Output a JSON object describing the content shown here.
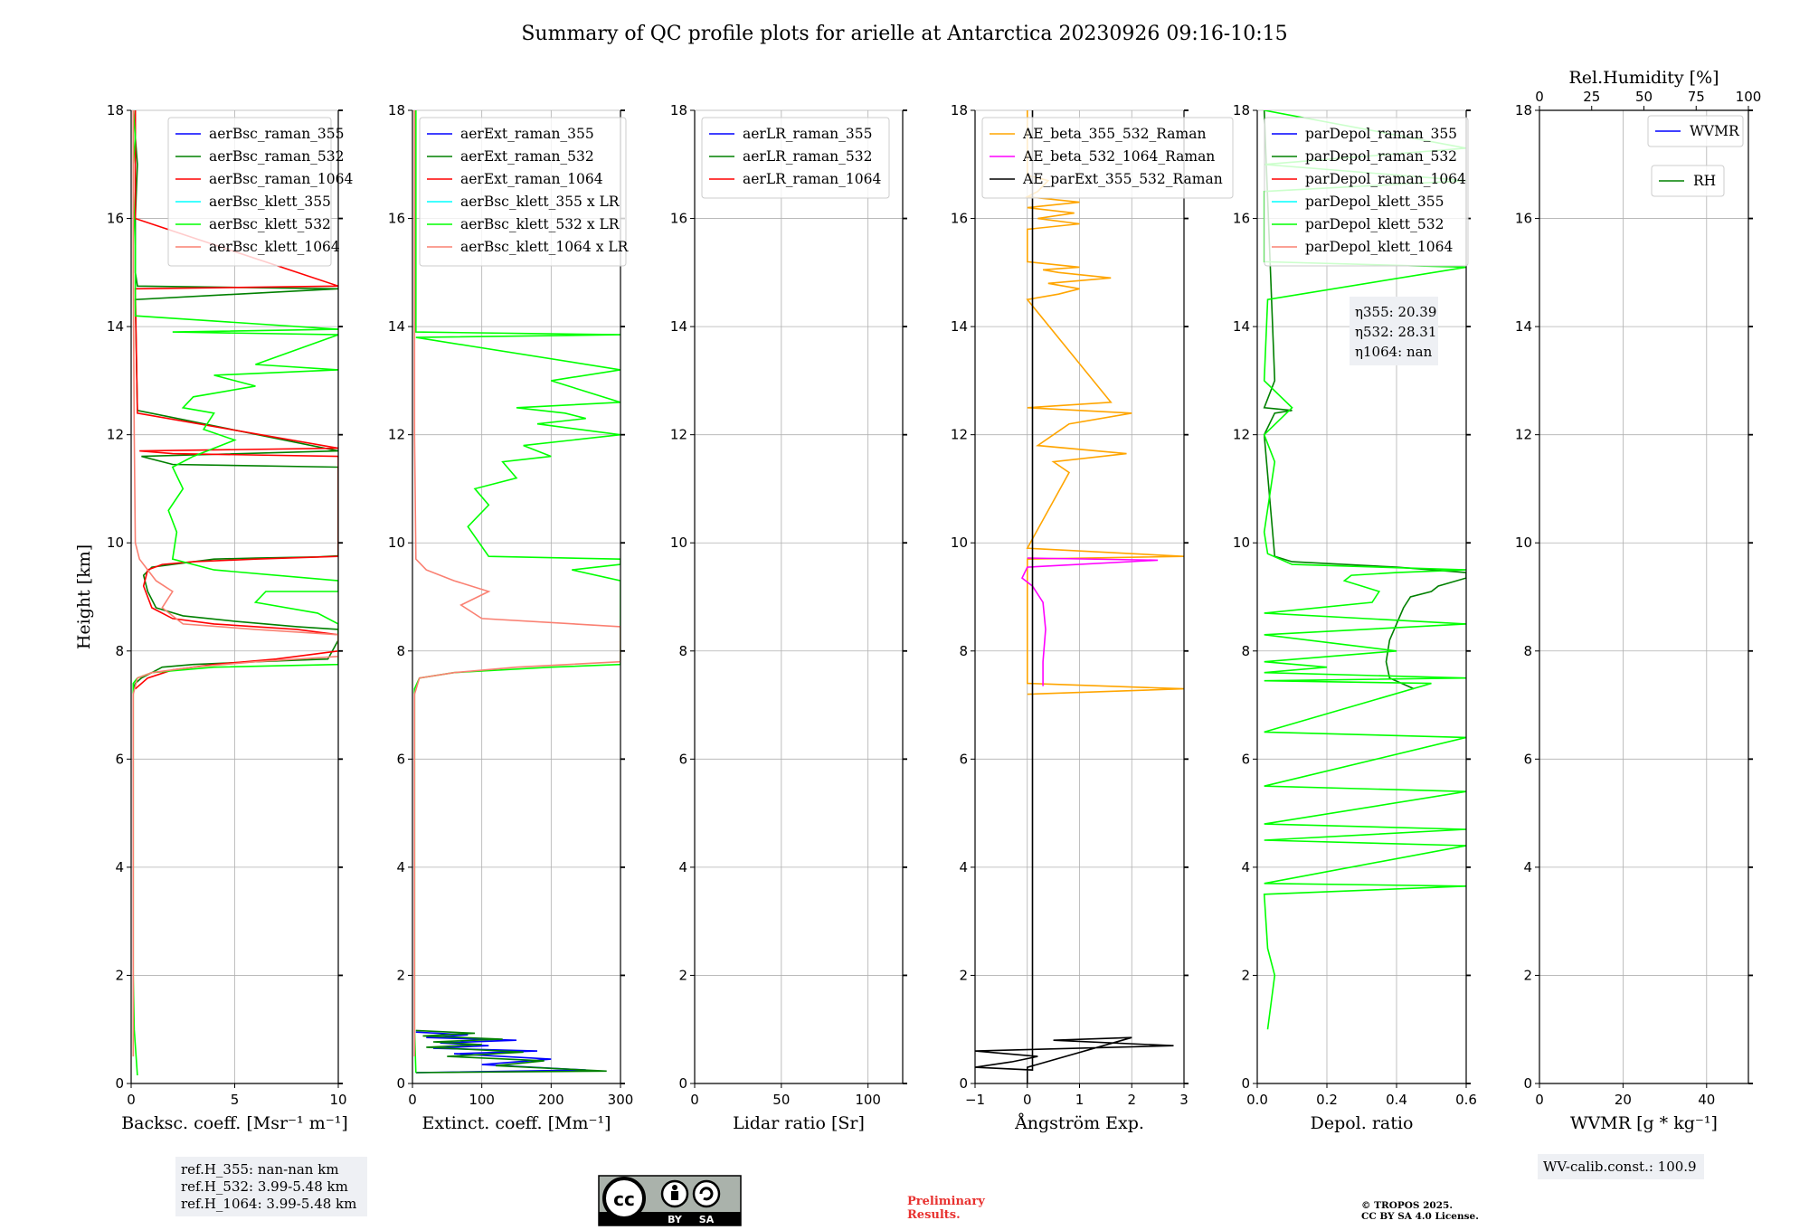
{
  "title": "Summary of QC profile plots for arielle at Antarctica 20230926 09:16-10:15",
  "colors": {
    "blue": "#0000ff",
    "darkgreen": "#008000",
    "red": "#ff0000",
    "cyan": "#00ffff",
    "lime": "#00ff00",
    "salmon": "#fa8072",
    "orange": "#ffa500",
    "magenta": "#ff00ff",
    "black": "#000000",
    "olive": "#8f8f3c"
  },
  "reference_box": {
    "line1": "ref.H_355: nan-nan km",
    "line2": "ref.H_532: 3.99-5.48 km",
    "line3": "ref.H_1064: 3.99-5.48 km"
  },
  "eta_box": {
    "line1": "η355: 20.39",
    "line2": "η532: 28.31",
    "line3": "η1064: nan"
  },
  "wv_box": {
    "text": "WV-calib.const.: 100.9"
  },
  "license_badge": {
    "cc": "cc",
    "by": "BY",
    "sa": "SA"
  },
  "preliminary": {
    "line1": "Preliminary",
    "line2": "Results."
  },
  "copyright": {
    "line1": "© TROPOS 2025.",
    "line2": "CC BY SA 4.0 License."
  },
  "chart_data": [
    {
      "type": "line",
      "xlabel": "Backsc. coeff. [Msr⁻¹ m⁻¹]",
      "ylabel": "Height [km]",
      "xlim": [
        0,
        10
      ],
      "ylim": [
        0,
        18
      ],
      "xticks": [
        "0",
        "5",
        "10"
      ],
      "yticks": [
        "0",
        "2",
        "4",
        "6",
        "8",
        "10",
        "12",
        "14",
        "16",
        "18"
      ],
      "grid": true,
      "legend_position": "top-right",
      "series": [
        {
          "name": "aerBsc_raman_355",
          "color": "#0000ff",
          "x": [],
          "y": []
        },
        {
          "name": "aerBsc_raman_532",
          "color": "#008000",
          "x": [
            0.1,
            0.2,
            0.5,
            1.0,
            1.5,
            3.0,
            6.0,
            9.5,
            10,
            10,
            8.0,
            5.0,
            2.5,
            1.2,
            0.8,
            0.6,
            1.0,
            2.0,
            4.0,
            6.0,
            9.0,
            10,
            10,
            2.0,
            0.5,
            10,
            0.3,
            0.2,
            10,
            0.3,
            0.2,
            0.2,
            0.3,
            0.2,
            0.2
          ],
          "y": [
            7.3,
            7.4,
            7.5,
            7.6,
            7.7,
            7.75,
            7.8,
            7.85,
            8.2,
            8.4,
            8.45,
            8.55,
            8.65,
            8.8,
            9.1,
            9.4,
            9.55,
            9.6,
            9.7,
            9.72,
            9.74,
            9.76,
            11.4,
            11.45,
            11.6,
            11.7,
            12.45,
            14.5,
            14.7,
            14.75,
            15.0,
            16.0,
            17.0,
            17.5,
            18.0
          ]
        },
        {
          "name": "aerBsc_raman_1064",
          "color": "#ff0000",
          "x": [
            0.2,
            0.8,
            2.0,
            4.0,
            7.0,
            10,
            10,
            8.0,
            4.0,
            2.0,
            1.0,
            0.6,
            0.8,
            1.5,
            3.0,
            6.0,
            10,
            10,
            2.0,
            0.4,
            10,
            0.3,
            0.2,
            10,
            0.2,
            0.2
          ],
          "y": [
            7.3,
            7.5,
            7.65,
            7.75,
            7.85,
            8.0,
            8.3,
            8.4,
            8.5,
            8.6,
            8.8,
            9.2,
            9.5,
            9.6,
            9.65,
            9.7,
            9.75,
            11.6,
            11.65,
            11.7,
            11.75,
            12.4,
            14.7,
            14.75,
            16.0,
            18.0
          ]
        },
        {
          "name": "aerBsc_klett_355",
          "color": "#00ffff",
          "x": [],
          "y": []
        },
        {
          "name": "aerBsc_klett_532",
          "color": "#00ff00",
          "x": [
            0.3,
            0.15,
            0.1,
            0.1,
            0.1,
            0.1,
            0.1,
            0.3,
            1.0,
            4.0,
            10,
            10,
            9.0,
            6.0,
            6.5,
            10,
            10,
            4.0,
            2.0,
            2.2,
            1.8,
            2.5,
            2.0,
            3.0,
            5.0,
            3.5,
            4.0,
            2.5,
            3.0,
            6.0,
            4.0,
            10,
            6.0,
            10,
            2.0,
            10,
            0.2,
            0.2,
            0.1,
            0.1,
            0.2,
            0.1
          ],
          "y": [
            0.15,
            1.0,
            2.0,
            4.0,
            6.0,
            7.0,
            7.4,
            7.5,
            7.6,
            7.7,
            7.75,
            8.5,
            8.7,
            8.9,
            9.1,
            9.1,
            9.3,
            9.5,
            9.7,
            10.2,
            10.6,
            11.0,
            11.4,
            11.6,
            11.9,
            12.1,
            12.4,
            12.5,
            12.7,
            12.9,
            13.1,
            13.2,
            13.3,
            13.85,
            13.9,
            13.95,
            14.2,
            15.5,
            16.5,
            17.0,
            17.5,
            18.0
          ]
        },
        {
          "name": "aerBsc_klett_1064",
          "color": "#fa8072",
          "x": [
            0.1,
            0.1,
            0.1,
            0.3,
            1.0,
            3.0,
            6.0,
            10,
            10,
            6.0,
            2.5,
            1.5,
            2.0,
            1.2,
            0.8,
            0.4,
            0.2,
            0.15,
            0.1,
            0.1
          ],
          "y": [
            0.5,
            4.0,
            7.2,
            7.5,
            7.6,
            7.7,
            7.8,
            7.9,
            8.3,
            8.4,
            8.5,
            8.8,
            9.1,
            9.3,
            9.5,
            9.7,
            10.0,
            12.0,
            15.0,
            18.0
          ]
        }
      ]
    },
    {
      "type": "line",
      "xlabel": "Extinct. coeff. [Mm⁻¹]",
      "ylabel": "",
      "xlim": [
        0,
        300
      ],
      "ylim": [
        0,
        18
      ],
      "xticks": [
        "0",
        "100",
        "200",
        "300"
      ],
      "yticks": [
        "0",
        "2",
        "4",
        "6",
        "8",
        "10",
        "12",
        "14",
        "16",
        "18"
      ],
      "grid": true,
      "legend_position": "top-left",
      "series": [
        {
          "name": "aerExt_raman_355",
          "color": "#0000ff",
          "x": [
            5,
            80,
            20,
            150,
            40,
            110,
            30,
            180,
            60,
            200,
            100,
            250,
            5
          ],
          "y": [
            0.95,
            0.9,
            0.85,
            0.8,
            0.75,
            0.7,
            0.65,
            0.6,
            0.55,
            0.45,
            0.35,
            0.25,
            0.2
          ]
        },
        {
          "name": "aerExt_raman_532",
          "color": "#008000",
          "x": [
            5,
            90,
            15,
            130,
            30,
            100,
            20,
            160,
            50,
            190,
            120,
            280,
            5
          ],
          "y": [
            0.98,
            0.93,
            0.88,
            0.82,
            0.77,
            0.72,
            0.67,
            0.58,
            0.5,
            0.42,
            0.33,
            0.23,
            0.2
          ]
        },
        {
          "name": "aerExt_raman_1064",
          "color": "#ff0000",
          "x": [],
          "y": []
        },
        {
          "name": "aerBsc_klett_355 x LR",
          "color": "#00ffff",
          "x": [],
          "y": []
        },
        {
          "name": "aerBsc_klett_532 x LR",
          "color": "#00ff00",
          "x": [
            5,
            3,
            3,
            3,
            3,
            10,
            60,
            200,
            300,
            300,
            230,
            300,
            300,
            110,
            80,
            110,
            90,
            150,
            130,
            200,
            160,
            300,
            180,
            250,
            220,
            150,
            300,
            200,
            300,
            5,
            300,
            5,
            5,
            5
          ],
          "y": [
            0.2,
            1.0,
            4.0,
            6.0,
            7.3,
            7.5,
            7.6,
            7.7,
            7.75,
            9.3,
            9.5,
            9.6,
            9.7,
            9.75,
            10.3,
            10.7,
            11.0,
            11.2,
            11.5,
            11.6,
            11.8,
            12.0,
            12.2,
            12.3,
            12.4,
            12.5,
            12.6,
            13.0,
            13.2,
            13.8,
            13.85,
            13.9,
            16.0,
            18.0
          ]
        },
        {
          "name": "aerBsc_klett_1064 x LR",
          "color": "#fa8072",
          "x": [
            3,
            3,
            3,
            10,
            60,
            150,
            300,
            300,
            100,
            70,
            110,
            60,
            20,
            5,
            3,
            3
          ],
          "y": [
            0.5,
            4.0,
            7.2,
            7.5,
            7.6,
            7.7,
            7.8,
            8.45,
            8.6,
            8.85,
            9.1,
            9.3,
            9.5,
            9.7,
            12.0,
            18.0
          ]
        }
      ]
    },
    {
      "type": "line",
      "xlabel": "Lidar ratio [Sr]",
      "ylabel": "",
      "xlim": [
        0,
        120
      ],
      "ylim": [
        0,
        18
      ],
      "xticks": [
        "0",
        "50",
        "100"
      ],
      "yticks": [
        "0",
        "2",
        "4",
        "6",
        "8",
        "10",
        "12",
        "14",
        "16",
        "18"
      ],
      "grid": true,
      "legend_position": "top-left",
      "series": [
        {
          "name": "aerLR_raman_355",
          "color": "#0000ff",
          "x": [],
          "y": []
        },
        {
          "name": "aerLR_raman_532",
          "color": "#008000",
          "x": [],
          "y": []
        },
        {
          "name": "aerLR_raman_1064",
          "color": "#ff0000",
          "x": [],
          "y": []
        }
      ]
    },
    {
      "type": "line",
      "xlabel": "Ångström Exp.",
      "ylabel": "",
      "xlim": [
        -1,
        3
      ],
      "ylim": [
        0,
        18
      ],
      "xticks": [
        "−1",
        "0",
        "1",
        "2",
        "3"
      ],
      "yticks": [
        "0",
        "2",
        "4",
        "6",
        "8",
        "10",
        "12",
        "14",
        "16",
        "18"
      ],
      "grid": true,
      "legend_position": "top-left",
      "series": [
        {
          "name": "AE_beta_355_532_Raman",
          "color": "#ffa500",
          "x": [
            0.0,
            3.0,
            0.0,
            0.0,
            3.0,
            0.0,
            0.8,
            0.5,
            1.9,
            0.2,
            0.5,
            0.8,
            2.0,
            0.0,
            1.6,
            0.0,
            0.6,
            1.0,
            0.4,
            1.6,
            0.6,
            0.3,
            1.0,
            0.0,
            0.0,
            1.0,
            0.2,
            0.9,
            0.0,
            1.0,
            0.0,
            0.2,
            0.4,
            0.0,
            0.0
          ],
          "y": [
            7.2,
            7.3,
            7.4,
            9.7,
            9.75,
            9.9,
            11.3,
            11.5,
            11.65,
            11.8,
            12.0,
            12.2,
            12.4,
            12.5,
            12.6,
            14.5,
            14.6,
            14.7,
            14.8,
            14.9,
            15.0,
            15.05,
            15.1,
            15.2,
            15.8,
            15.9,
            16.0,
            16.1,
            16.2,
            16.3,
            16.4,
            16.5,
            16.7,
            16.8,
            18.0
          ]
        },
        {
          "name": "AE_beta_532_1064_Raman",
          "color": "#ff00ff",
          "x": [
            0.3,
            0.3,
            0.35,
            0.3,
            0.1,
            -0.1,
            0.0,
            2.5,
            0.0
          ],
          "y": [
            7.35,
            7.8,
            8.4,
            8.9,
            9.2,
            9.35,
            9.55,
            9.68,
            9.72
          ]
        },
        {
          "name": "AE_parExt_355_532_Raman",
          "color": "#000000",
          "x": [
            0.0,
            0.0,
            0.0,
            2.0,
            0.5,
            2.8,
            -1.0,
            0.2,
            -0.3,
            -1.0,
            0.1,
            0.1,
            0.1
          ],
          "y": [
            0.0,
            0.25,
            0.3,
            0.85,
            0.8,
            0.7,
            0.6,
            0.5,
            0.4,
            0.3,
            0.25,
            0.9,
            18.0
          ]
        }
      ]
    },
    {
      "type": "line",
      "xlabel": "Depol. ratio",
      "ylabel": "",
      "xlim": [
        0,
        0.6
      ],
      "ylim": [
        0,
        18
      ],
      "xticks": [
        "0.0",
        "0.2",
        "0.4",
        "0.6"
      ],
      "yticks": [
        "0",
        "2",
        "4",
        "6",
        "8",
        "10",
        "12",
        "14",
        "16",
        "18"
      ],
      "grid": true,
      "legend_position": "top-left",
      "series": [
        {
          "name": "parDepol_raman_355",
          "color": "#0000ff",
          "x": [],
          "y": []
        },
        {
          "name": "parDepol_raman_532",
          "color": "#008000",
          "x": [
            0.45,
            0.38,
            0.37,
            0.38,
            0.4,
            0.42,
            0.44,
            0.5,
            0.52,
            0.6,
            0.6,
            0.4,
            0.1,
            0.05,
            0.02,
            0.05,
            0.1,
            0.02,
            0.05,
            0.02
          ],
          "y": [
            7.3,
            7.5,
            7.8,
            8.2,
            8.5,
            8.8,
            9.0,
            9.1,
            9.2,
            9.35,
            9.45,
            9.55,
            9.65,
            9.75,
            12.0,
            12.4,
            12.45,
            12.5,
            13.0,
            18.0
          ]
        },
        {
          "name": "parDepol_raman_1064",
          "color": "#ff0000",
          "x": [],
          "y": []
        },
        {
          "name": "parDepol_klett_355",
          "color": "#00ffff",
          "x": [],
          "y": []
        },
        {
          "name": "parDepol_klett_532",
          "color": "#00ff00",
          "x": [
            0.03,
            0.04,
            0.05,
            0.03,
            0.02,
            0.6,
            0.02,
            0.6,
            0.02,
            0.6,
            0.02,
            0.6,
            0.02,
            0.6,
            0.02,
            0.5,
            0.02,
            0.6,
            0.02,
            0.2,
            0.02,
            0.4,
            0.02,
            0.6,
            0.02,
            0.33,
            0.35,
            0.3,
            0.25,
            0.27,
            0.4,
            0.6,
            0.1,
            0.03,
            0.02,
            0.05,
            0.02,
            0.1,
            0.02,
            0.03,
            0.6,
            0.02,
            0.02,
            0.6,
            0.02,
            0.6,
            0.02
          ],
          "y": [
            1.0,
            1.5,
            2.0,
            2.5,
            3.5,
            3.65,
            3.7,
            4.4,
            4.5,
            4.7,
            4.8,
            5.4,
            5.5,
            6.4,
            6.5,
            7.4,
            7.45,
            7.5,
            7.6,
            7.7,
            7.8,
            8.0,
            8.3,
            8.5,
            8.7,
            8.9,
            9.1,
            9.2,
            9.3,
            9.4,
            9.45,
            9.5,
            9.6,
            9.8,
            10.2,
            11.5,
            12.0,
            12.5,
            13.0,
            14.5,
            15.1,
            15.2,
            16.5,
            16.7,
            17.0,
            17.3,
            18.0
          ]
        },
        {
          "name": "parDepol_klett_1064",
          "color": "#fa8072",
          "x": [],
          "y": []
        }
      ]
    },
    {
      "type": "line",
      "xlabel": "WVMR [g * kg⁻¹]",
      "ylabel": "",
      "xlim": [
        0,
        50
      ],
      "ylim": [
        0,
        18
      ],
      "xticks": [
        "0",
        "20",
        "40"
      ],
      "yticks": [
        "0",
        "2",
        "4",
        "6",
        "8",
        "10",
        "12",
        "14",
        "16",
        "18"
      ],
      "top_xlabel": "Rel.Humidity [%]",
      "top_xlim": [
        0,
        100
      ],
      "top_xticks": [
        "0",
        "25",
        "50",
        "75",
        "100"
      ],
      "grid": true,
      "legend_position": "top-right",
      "series": [
        {
          "name": "WVMR",
          "color": "#0000ff",
          "x": [],
          "y": []
        },
        {
          "name": "RH",
          "color": "#008000",
          "x": [],
          "y": []
        }
      ]
    }
  ]
}
